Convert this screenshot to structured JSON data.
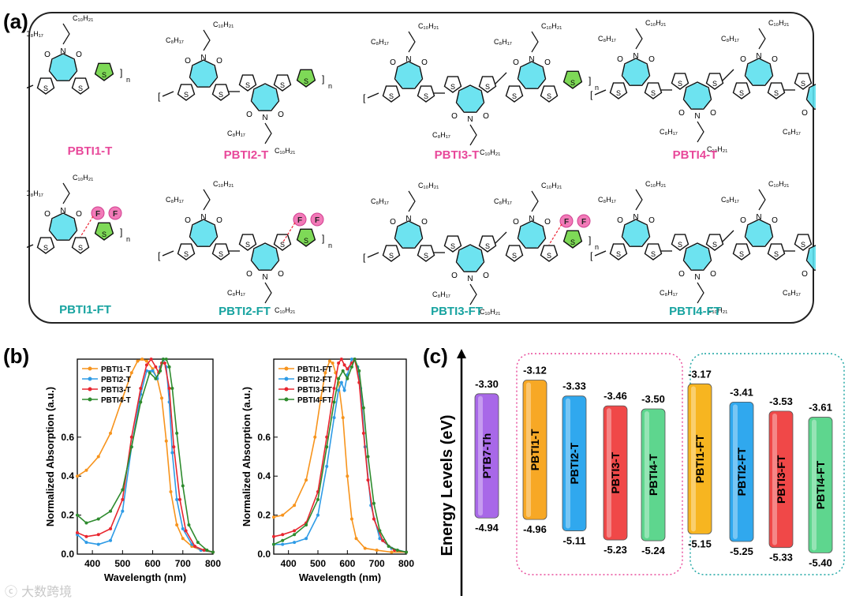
{
  "figure": {
    "panel_labels": {
      "a": "(a)",
      "b": "(b)",
      "c": "(c)"
    },
    "watermark": "大数跨境"
  },
  "panel_a": {
    "molecules_top": [
      {
        "name": "PBTI1-T",
        "color": "#e8489a",
        "sidechain_top": "C8H17 / C9H19"
      },
      {
        "name": "PBTI2-T",
        "color": "#e8489a"
      },
      {
        "name": "PBTI3-T",
        "color": "#e8489a"
      },
      {
        "name": "PBTI4-T",
        "color": "#e8489a"
      }
    ],
    "molecules_bottom": [
      {
        "name": "PBTI1-FT",
        "color": "#17a3a0"
      },
      {
        "name": "PBTI2-FT",
        "color": "#17a3a0"
      },
      {
        "name": "PBTI3-FT",
        "color": "#17a3a0"
      },
      {
        "name": "PBTI4-FT",
        "color": "#17a3a0"
      }
    ],
    "atom_labels": {
      "s": "S",
      "f": "F",
      "n": "N",
      "o": "O",
      "sub_n": "n",
      "c10": "C₁₀H₂₁",
      "c8": "C₈H₁₇",
      "c9": "C₉H₁₉"
    }
  },
  "chart_data": [
    {
      "type": "line",
      "ylabel": "Normalized Absorption (a.u.)",
      "xlabel": "Wavelength (nm)",
      "xlim": [
        350,
        800
      ],
      "ylim": [
        0,
        1.0
      ],
      "xticks": [
        400,
        500,
        600,
        700,
        800
      ],
      "yticks": [
        0.0,
        0.2,
        0.4,
        0.6
      ],
      "legend_position": "top-left",
      "series": [
        {
          "name": "PBTI1-T",
          "color": "#f7941d",
          "x": [
            350,
            380,
            420,
            460,
            500,
            530,
            550,
            565,
            580,
            600,
            615,
            630,
            645,
            660,
            680,
            700,
            730,
            760,
            800
          ],
          "y": [
            0.4,
            0.43,
            0.5,
            0.62,
            0.8,
            0.93,
            0.99,
            1.0,
            0.99,
            0.95,
            0.9,
            0.8,
            0.58,
            0.32,
            0.15,
            0.08,
            0.04,
            0.02,
            0.01
          ]
        },
        {
          "name": "PBTI2-T",
          "color": "#2e9be6",
          "x": [
            350,
            380,
            420,
            460,
            500,
            530,
            560,
            580,
            600,
            615,
            625,
            635,
            645,
            655,
            665,
            680,
            700,
            730,
            760,
            800
          ],
          "y": [
            0.1,
            0.06,
            0.05,
            0.07,
            0.22,
            0.55,
            0.82,
            0.94,
            0.94,
            0.9,
            0.96,
            1.0,
            0.96,
            0.78,
            0.52,
            0.28,
            0.13,
            0.05,
            0.02,
            0.01
          ]
        },
        {
          "name": "PBTI3-T",
          "color": "#e8262f",
          "x": [
            350,
            380,
            420,
            460,
            500,
            530,
            560,
            580,
            595,
            610,
            620,
            630,
            640,
            655,
            670,
            690,
            710,
            740,
            770,
            800
          ],
          "y": [
            0.11,
            0.09,
            0.1,
            0.13,
            0.28,
            0.6,
            0.85,
            0.97,
            1.0,
            0.96,
            0.93,
            0.98,
            0.98,
            0.85,
            0.55,
            0.28,
            0.12,
            0.04,
            0.02,
            0.01
          ]
        },
        {
          "name": "PBTI4-T",
          "color": "#2e8b2e",
          "x": [
            350,
            380,
            420,
            460,
            500,
            530,
            560,
            590,
            610,
            625,
            635,
            645,
            655,
            665,
            680,
            700,
            720,
            750,
            780,
            800
          ],
          "y": [
            0.2,
            0.16,
            0.18,
            0.22,
            0.33,
            0.55,
            0.78,
            0.93,
            0.9,
            0.94,
            1.0,
            1.0,
            0.96,
            0.85,
            0.62,
            0.35,
            0.15,
            0.06,
            0.02,
            0.01
          ]
        }
      ]
    },
    {
      "type": "line",
      "ylabel": "Normalized Absorption (a.u.)",
      "xlabel": "Wavelength (nm)",
      "xlim": [
        350,
        800
      ],
      "ylim": [
        0,
        1.0
      ],
      "xticks": [
        400,
        500,
        600,
        700,
        800
      ],
      "yticks": [
        0.0,
        0.2,
        0.4,
        0.6
      ],
      "legend_position": "top-left",
      "series": [
        {
          "name": "PBTI1-FT",
          "color": "#f7941d",
          "x": [
            350,
            380,
            420,
            460,
            490,
            510,
            525,
            540,
            550,
            560,
            570,
            585,
            600,
            615,
            630,
            660,
            700,
            750,
            800
          ],
          "y": [
            0.19,
            0.2,
            0.25,
            0.38,
            0.6,
            0.8,
            0.93,
            0.99,
            0.98,
            0.93,
            0.88,
            0.7,
            0.4,
            0.18,
            0.08,
            0.03,
            0.02,
            0.01,
            0.01
          ]
        },
        {
          "name": "PBTI2-FT",
          "color": "#2e9be6",
          "x": [
            350,
            380,
            420,
            460,
            500,
            530,
            555,
            570,
            580,
            590,
            600,
            615,
            625,
            635,
            645,
            660,
            680,
            710,
            750,
            800
          ],
          "y": [
            0.05,
            0.05,
            0.06,
            0.08,
            0.2,
            0.45,
            0.7,
            0.84,
            0.88,
            0.84,
            0.92,
            1.0,
            1.0,
            0.96,
            0.85,
            0.55,
            0.25,
            0.08,
            0.03,
            0.01
          ]
        },
        {
          "name": "PBTI3-FT",
          "color": "#e8262f",
          "x": [
            350,
            380,
            420,
            460,
            500,
            530,
            555,
            570,
            580,
            590,
            600,
            615,
            625,
            640,
            655,
            670,
            690,
            720,
            760,
            800
          ],
          "y": [
            0.09,
            0.1,
            0.12,
            0.16,
            0.32,
            0.6,
            0.85,
            0.98,
            1.0,
            0.97,
            0.95,
            0.98,
            1.0,
            0.88,
            0.62,
            0.38,
            0.18,
            0.07,
            0.02,
            0.01
          ]
        },
        {
          "name": "PBTI4-FT",
          "color": "#2e8b2e",
          "x": [
            350,
            380,
            420,
            460,
            500,
            530,
            555,
            570,
            585,
            600,
            615,
            625,
            640,
            655,
            670,
            690,
            710,
            740,
            770,
            800
          ],
          "y": [
            0.05,
            0.07,
            0.1,
            0.15,
            0.28,
            0.55,
            0.78,
            0.9,
            0.94,
            0.9,
            0.96,
            1.0,
            0.94,
            0.75,
            0.5,
            0.26,
            0.12,
            0.04,
            0.02,
            0.01
          ]
        }
      ]
    },
    {
      "type": "bar",
      "ylabel": "Energy Levels (eV)",
      "categories": [
        "PTB7-Th",
        "PBTI1-T",
        "PBTI2-T",
        "PBTI3-T",
        "PBTI4-T",
        "PBTI1-FT",
        "PBTI2-FT",
        "PBTI3-FT",
        "PBTI4-FT"
      ],
      "lumo": [
        -3.3,
        -3.12,
        -3.33,
        -3.46,
        -3.5,
        -3.17,
        -3.41,
        -3.53,
        -3.61
      ],
      "homo": [
        -4.94,
        -4.96,
        -5.11,
        -5.23,
        -5.24,
        -5.15,
        -5.25,
        -5.33,
        -5.4
      ],
      "lumo_labels": [
        "-3.30",
        "-3.12",
        "-3.33",
        "-3.46",
        "-3.50",
        "-3.17",
        "-3.41",
        "-3.53",
        "-3.61"
      ],
      "homo_labels": [
        "-4.94",
        "-4.96",
        "-5.11",
        "-5.23",
        "-5.24",
        "-5.15",
        "-5.25",
        "-5.33",
        "-5.40"
      ],
      "colors": [
        "#a868e8",
        "#f7a825",
        "#30a8ee",
        "#f04848",
        "#5ed68e",
        "#f7b520",
        "#30a8ee",
        "#f04848",
        "#5ed68e"
      ],
      "group_boxes": [
        {
          "members": [
            "PBTI1-T",
            "PBTI2-T",
            "PBTI3-T",
            "PBTI4-T"
          ],
          "color": "#e8489a"
        },
        {
          "members": [
            "PBTI1-FT",
            "PBTI2-FT",
            "PBTI3-FT",
            "PBTI4-FT"
          ],
          "color": "#17a3a0"
        }
      ]
    }
  ]
}
